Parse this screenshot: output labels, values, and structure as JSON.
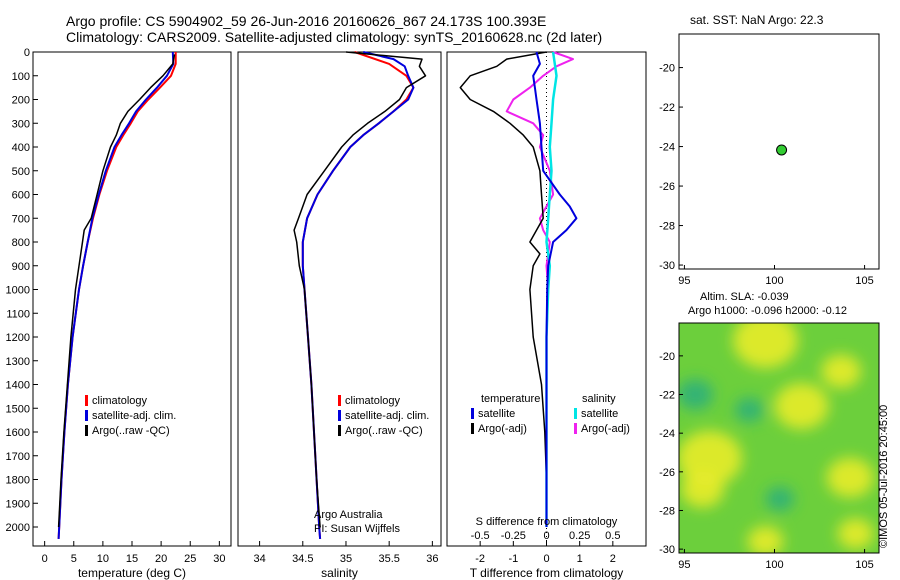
{
  "header": {
    "line1": "Argo profile: CS 5904902_59 26-Jun-2016 20160626_867 24.173S 100.393E",
    "line2": "Climatology: CARS2009. Satellite-adjusted climatology: synTS_20160628.nc (2d later)"
  },
  "sat_title": "sat. SST: NaN Argo: 22.3",
  "altim_line1": "Altim. SLA: -0.039",
  "altim_line2": "Argo h1000: -0.096 h2000: -0.12",
  "imos_stamp": "©IMOS 05-Jul-2016 20:45:00",
  "colors": {
    "climatology": "#ff0000",
    "satellite": "#0000dd",
    "argo": "#000000",
    "sal_satellite": "#00e5e5",
    "sal_argo": "#ee22ee",
    "marker": "#33cc33"
  },
  "chart_data": [
    {
      "id": "temperature",
      "type": "line",
      "xlabel": "temperature (deg C)",
      "ylabel": "",
      "xlim": [
        -2,
        32
      ],
      "ylim": [
        2080,
        0
      ],
      "y_inverted": true,
      "xticks": [
        0,
        5,
        10,
        15,
        20,
        25,
        30
      ],
      "yticks": [
        0,
        100,
        200,
        300,
        400,
        500,
        600,
        700,
        800,
        900,
        1000,
        1100,
        1200,
        1300,
        1400,
        1500,
        1600,
        1700,
        1800,
        1900,
        2000
      ],
      "legend": [
        "climatology",
        "satellite-adj. clim.",
        "Argo(..raw -QC)"
      ],
      "series": [
        {
          "name": "climatology",
          "y": [
            0,
            50,
            100,
            150,
            200,
            250,
            300,
            350,
            400,
            500,
            600,
            700,
            800,
            900,
            1000,
            1200,
            1400,
            1600,
            1800,
            2000,
            2050
          ],
          "x": [
            22.5,
            22.5,
            21.7,
            19.8,
            17.8,
            16.0,
            14.8,
            13.5,
            12.3,
            10.7,
            9.4,
            8.3,
            7.4,
            6.6,
            5.9,
            4.8,
            4.0,
            3.4,
            2.9,
            2.5,
            2.4
          ]
        },
        {
          "name": "satellite-adj. clim.",
          "y": [
            0,
            50,
            100,
            150,
            200,
            250,
            300,
            350,
            400,
            500,
            600,
            700,
            800,
            900,
            1000,
            1200,
            1400,
            1600,
            1800,
            2000,
            2050
          ],
          "x": [
            22.0,
            22.1,
            21.0,
            19.3,
            17.4,
            15.7,
            14.5,
            13.2,
            12.0,
            10.5,
            9.3,
            8.2,
            7.4,
            6.6,
            5.9,
            4.8,
            4.0,
            3.4,
            2.9,
            2.5,
            2.4
          ]
        },
        {
          "name": "Argo(..raw -QC)",
          "y": [
            10,
            50,
            100,
            150,
            200,
            250,
            300,
            350,
            400,
            500,
            600,
            700,
            750,
            800,
            900,
            1000,
            1200,
            1400,
            1600,
            1800,
            2000
          ],
          "x": [
            22.3,
            22.0,
            20.3,
            18.2,
            16.3,
            14.3,
            13.0,
            12.3,
            11.3,
            10.0,
            9.0,
            8.0,
            6.8,
            6.5,
            5.9,
            5.3,
            4.5,
            3.9,
            3.3,
            2.8,
            2.4
          ]
        }
      ]
    },
    {
      "id": "salinity",
      "type": "line",
      "xlabel": "salinity",
      "xlim": [
        33.75,
        36.1
      ],
      "ylim": [
        2080,
        0
      ],
      "y_inverted": true,
      "xticks": [
        34,
        34.5,
        35,
        35.5,
        36
      ],
      "legend": [
        "climatology",
        "satellite-adj. clim.",
        "Argo(..raw -QC)"
      ],
      "annotation_line1": "Argo Australia",
      "annotation_line2": "PI: Susan Wijffels",
      "series": [
        {
          "name": "climatology",
          "y": [
            0,
            50,
            100,
            150,
            200,
            250,
            300,
            350,
            400,
            500,
            600,
            700,
            800,
            900,
            1000,
            1200,
            1400,
            1600,
            1800,
            2000,
            2050
          ],
          "x": [
            35.1,
            35.5,
            35.7,
            35.78,
            35.7,
            35.55,
            35.38,
            35.2,
            35.05,
            34.85,
            34.67,
            34.55,
            34.5,
            34.5,
            34.52,
            34.56,
            34.6,
            34.63,
            34.66,
            34.69,
            34.7
          ]
        },
        {
          "name": "satellite-adj. clim.",
          "y": [
            0,
            30,
            60,
            100,
            150,
            200,
            250,
            300,
            350,
            400,
            500,
            600,
            700,
            800,
            900,
            1000,
            1200,
            1400,
            1600,
            1800,
            2000,
            2050
          ],
          "x": [
            35.2,
            35.55,
            35.68,
            35.72,
            35.78,
            35.72,
            35.55,
            35.38,
            35.2,
            35.05,
            34.85,
            34.67,
            34.55,
            34.5,
            34.5,
            34.52,
            34.56,
            34.6,
            34.63,
            34.66,
            34.69,
            34.7
          ]
        },
        {
          "name": "Argo(..raw -QC)",
          "y": [
            0,
            30,
            60,
            100,
            150,
            200,
            250,
            300,
            350,
            400,
            500,
            600,
            700,
            750,
            800,
            900,
            1000,
            1200,
            1400,
            1600,
            1800,
            2000
          ],
          "x": [
            35.0,
            35.88,
            35.85,
            35.92,
            35.7,
            35.62,
            35.45,
            35.25,
            35.08,
            34.95,
            34.75,
            34.55,
            34.45,
            34.4,
            34.43,
            34.46,
            34.52,
            34.56,
            34.6,
            34.63,
            34.66,
            34.7
          ]
        }
      ]
    },
    {
      "id": "difference",
      "type": "line",
      "xlabel": "T difference from climatology",
      "top_label": "S difference from climatology",
      "xlim": [
        -3,
        3
      ],
      "ylim": [
        2080,
        0
      ],
      "y_inverted": true,
      "xticks": [
        -2,
        -1,
        0,
        1,
        2
      ],
      "top_ticks": [
        {
          "v": -2,
          "label": "-0.5"
        },
        {
          "v": -1,
          "label": "-0.25"
        },
        {
          "v": 0,
          "label": "0"
        },
        {
          "v": 1,
          "label": "0.25"
        },
        {
          "v": 2,
          "label": "0.5"
        }
      ],
      "legend_headers": [
        "temperature",
        "salinity"
      ],
      "legend": [
        "satellite",
        "Argo(-adj)",
        "satellite",
        "Argo(-adj)"
      ],
      "series": [
        {
          "name": "temperature satellite",
          "y": [
            0,
            50,
            100,
            150,
            200,
            300,
            400,
            500,
            600,
            650,
            700,
            750,
            800,
            900,
            1000,
            1200,
            1400,
            1600,
            1800,
            2000
          ],
          "x": [
            -0.3,
            -0.2,
            -0.4,
            -0.35,
            -0.3,
            -0.2,
            -0.15,
            -0.1,
            0.4,
            0.7,
            0.9,
            0.6,
            0.2,
            0.05,
            0.02,
            0.0,
            0.0,
            0.0,
            0.0,
            0.0
          ]
        },
        {
          "name": "temperature Argo(-adj)",
          "y": [
            0,
            30,
            60,
            100,
            150,
            200,
            250,
            300,
            350,
            400,
            500,
            600,
            700,
            800,
            850,
            900,
            1000,
            1200,
            1400,
            1600,
            1800,
            2000
          ],
          "x": [
            0,
            -1.2,
            -1.5,
            -2.3,
            -2.6,
            -2.3,
            -1.6,
            -1.1,
            -0.7,
            -0.4,
            -0.2,
            -0.15,
            -0.1,
            -0.5,
            -0.2,
            -0.4,
            -0.5,
            -0.4,
            -0.15,
            -0.05,
            0.0,
            0.0
          ]
        },
        {
          "name": "salinity satellite",
          "y": [
            0,
            100,
            200,
            300,
            400,
            500,
            600,
            700,
            800,
            900,
            1000,
            1200,
            1400,
            1600,
            1800,
            2000
          ],
          "x": [
            0.2,
            0.3,
            0.2,
            0.15,
            0.1,
            0.15,
            0.1,
            0.05,
            0.0,
            0.1,
            0.05,
            0.0,
            0.0,
            0.0,
            0.0,
            0.0
          ]
        },
        {
          "name": "salinity Argo(-adj)",
          "y": [
            0,
            30,
            60,
            100,
            150,
            200,
            250,
            300,
            350,
            400,
            500,
            600,
            650,
            700,
            750,
            800,
            900,
            1000,
            1200,
            1400,
            1600,
            1800,
            2000
          ],
          "x": [
            0.2,
            0.8,
            0.3,
            -0.1,
            -0.5,
            -1.0,
            -1.2,
            -0.4,
            -0.1,
            -0.2,
            0.1,
            0.2,
            0.0,
            -0.2,
            -0.1,
            0.1,
            0.0,
            0.05,
            0.0,
            0.0,
            0.0,
            0.0,
            0.0
          ]
        }
      ]
    },
    {
      "id": "position",
      "type": "scatter",
      "title": "sat. SST: NaN Argo: 22.3",
      "xlim": [
        94.7,
        105.8
      ],
      "ylim": [
        -30.2,
        -18.3
      ],
      "xticks": [
        95,
        100,
        105
      ],
      "yticks": [
        -20,
        -22,
        -24,
        -26,
        -28,
        -30
      ],
      "points": [
        {
          "x": 100.393,
          "y": -24.173
        }
      ]
    },
    {
      "id": "sla_map",
      "type": "heatmap",
      "title": "Altim. SLA: -0.039 / Argo h1000: -0.096 h2000: -0.12",
      "xlim": [
        94.7,
        105.8
      ],
      "ylim": [
        -30.2,
        -18.3
      ],
      "xticks": [
        95,
        100,
        105
      ],
      "yticks": [
        -20,
        -22,
        -24,
        -26,
        -28,
        -30
      ],
      "blobs": [
        {
          "x": 99.5,
          "y": -19.2,
          "r": 1.8,
          "level": 1
        },
        {
          "x": 101.5,
          "y": -22.6,
          "r": 1.5,
          "level": 1
        },
        {
          "x": 96.4,
          "y": -25.3,
          "r": 1.8,
          "level": 1
        },
        {
          "x": 96.0,
          "y": -26.9,
          "r": 1.2,
          "level": 1
        },
        {
          "x": 104.2,
          "y": -26.3,
          "r": 1.3,
          "level": 1
        },
        {
          "x": 99.5,
          "y": -29.6,
          "r": 1.0,
          "level": 1
        },
        {
          "x": 104.5,
          "y": -29.2,
          "r": 1.0,
          "level": 1
        },
        {
          "x": 103.7,
          "y": -20.8,
          "r": 1.1,
          "level": 1
        },
        {
          "x": 100.3,
          "y": -27.4,
          "r": 0.8,
          "level": -1
        },
        {
          "x": 95.6,
          "y": -22.0,
          "r": 1.0,
          "level": -1
        },
        {
          "x": 98.6,
          "y": -22.8,
          "r": 0.8,
          "level": -1
        }
      ]
    }
  ]
}
